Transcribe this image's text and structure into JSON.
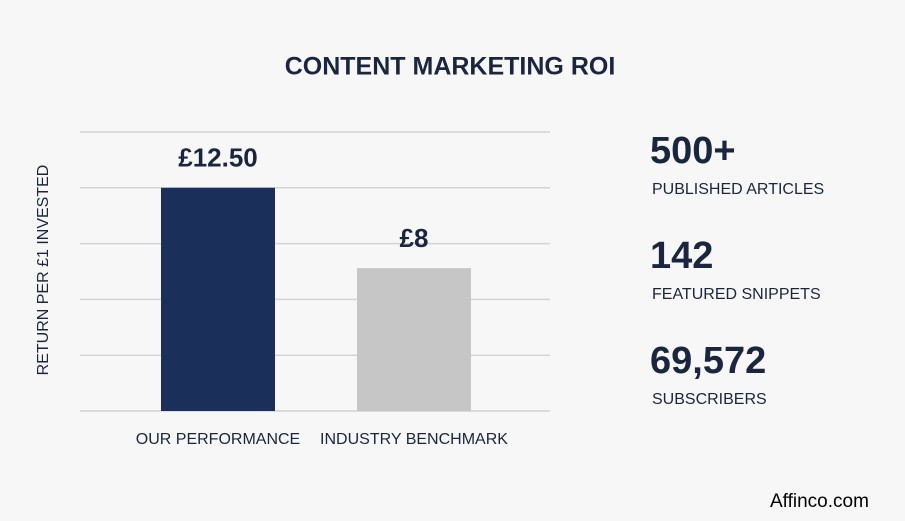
{
  "chart_data": {
    "type": "bar",
    "title": "CONTENT MARKETING ROI",
    "y_label": "RETURN PER £1 INVESTED",
    "categories": [
      "OUR PERFORMANCE",
      "INDUSTRY BENCHMARK"
    ],
    "values": [
      12.5,
      8
    ],
    "value_labels": [
      "£12.50",
      "£8"
    ],
    "colors": [
      "#1b2f5b",
      "#c6c6c6"
    ],
    "ylim": [
      0,
      15.625
    ],
    "yticks": [
      0,
      3.125,
      6.25,
      9.375,
      12.5,
      15.625
    ],
    "grid": true
  },
  "stats": [
    {
      "value": "500+",
      "label": "PUBLISHED ARTICLES"
    },
    {
      "value": "142",
      "label": "FEATURED SNIPPETS"
    },
    {
      "value": "69,572",
      "label": "SUBSCRIBERS"
    }
  ],
  "footer": "Affinco.com"
}
